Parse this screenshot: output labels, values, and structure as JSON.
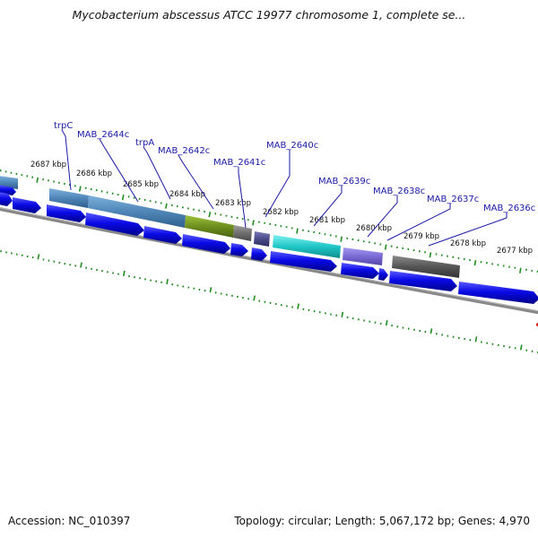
{
  "title": "Mycobacterium abscessus ATCC 19977 chromosome 1, complete se...",
  "footer": {
    "accession": "Accession: NC_010397",
    "summary": "Topology: circular; Length: 5,067,172 bp; Genes: 4,970"
  },
  "kbp_labels": [
    "2687 kbp",
    "2686 kbp",
    "2685 kbp",
    "2684 kbp",
    "2683 kbp",
    "2682 kbp",
    "2681 kbp",
    "2680 kbp",
    "2679 kbp",
    "2678 kbp",
    "2677 kbp"
  ],
  "gene_labels": [
    "trpC",
    "MAB_2644c",
    "trpA",
    "MAB_2642c",
    "MAB_2641c",
    "MAB_2640c",
    "MAB_2639c",
    "MAB_2638c",
    "MAB_2637c",
    "MAB_2636c"
  ],
  "colors": {
    "cds": "#0a0ae6",
    "label": "#1a1aa6",
    "tick": "#1e8c1e",
    "backbone": "#808080",
    "feature_steelblue": "#4f86b8",
    "feature_olive": "#6f8f1e",
    "feature_gray": "#707070",
    "feature_indigo": "#4a4a8a",
    "feature_cyan": "#20c6c6",
    "feature_lavender": "#7a6ad6",
    "feature_darkgray": "#555555"
  }
}
